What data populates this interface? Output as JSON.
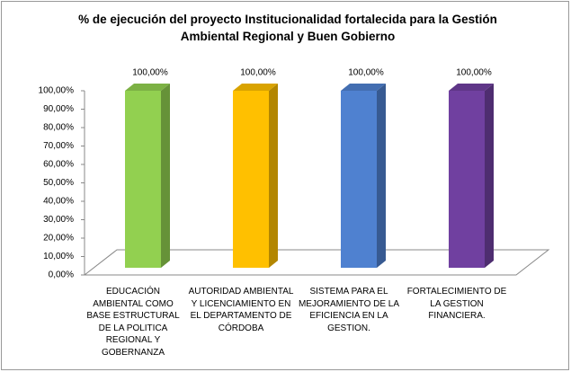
{
  "chart_data": {
    "type": "bar3d",
    "title": "% de ejecución del proyecto Institucionalidad fortalecida para la Gestión Ambiental Regional y Buen Gobierno",
    "categories": [
      "EDUCACIÓN AMBIENTAL COMO BASE ESTRUCTURAL DE LA POLITICA REGIONAL Y GOBERNANZA",
      "AUTORIDAD AMBIENTAL Y LICENCIAMIENTO EN EL DEPARTAMENTO DE CÓRDOBA",
      "SISTEMA PARA EL MEJORAMIENTO DE LA EFICIENCIA EN LA GESTION.",
      "FORTALECIMIENTO DE LA GESTION FINANCIERA."
    ],
    "values": [
      100,
      100,
      100,
      100
    ],
    "value_labels": [
      "100,00%",
      "100,00%",
      "100,00%",
      "100,00%"
    ],
    "colors": [
      "#92d050",
      "#ffc000",
      "#4f81d0",
      "#7040a0"
    ],
    "ylim": [
      0,
      100
    ],
    "yticks": [
      {
        "value": 0,
        "label": "0,00%"
      },
      {
        "value": 10,
        "label": "10,00%"
      },
      {
        "value": 20,
        "label": "20,00%"
      },
      {
        "value": 30,
        "label": "30,00%"
      },
      {
        "value": 40,
        "label": "40,00%"
      },
      {
        "value": 50,
        "label": "50,00%"
      },
      {
        "value": 60,
        "label": "60,00%"
      },
      {
        "value": 70,
        "label": "70,00%"
      },
      {
        "value": 80,
        "label": "80,00%"
      },
      {
        "value": 90,
        "label": "90,00%"
      },
      {
        "value": 100,
        "label": "100,00%"
      }
    ]
  }
}
